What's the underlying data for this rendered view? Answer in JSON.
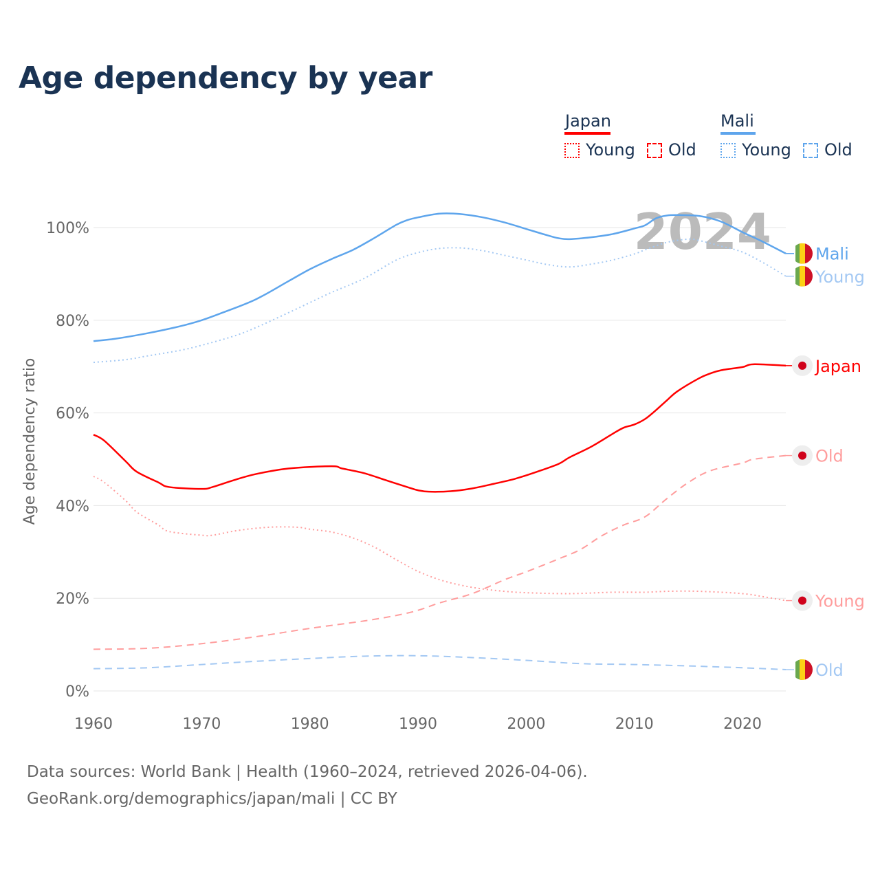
{
  "title": "Age dependency by year",
  "legend": {
    "groups": [
      {
        "name": "Japan",
        "color": "#ff0000",
        "young": "Young",
        "old": "Old"
      },
      {
        "name": "Mali",
        "color": "#5ea5ec",
        "young": "Young",
        "old": "Old"
      }
    ]
  },
  "year_watermark": "2024",
  "footer": {
    "line1": "Data sources: World Bank | Health (1960–2024, retrieved 2026-04-06).",
    "line2": "GeoRank.org/demographics/japan/mali | CC BY"
  },
  "chart_data": {
    "type": "line",
    "title": "Age dependency by year",
    "xlabel": "",
    "ylabel": "Age dependency ratio",
    "xlim": [
      1960,
      2024
    ],
    "ylim": [
      0,
      100
    ],
    "xticks": [
      "1960",
      "1970",
      "1980",
      "1990",
      "2000",
      "2010",
      "2020"
    ],
    "yticks": [
      "0%",
      "20%",
      "40%",
      "60%",
      "80%",
      "100%"
    ],
    "grid": true,
    "legend_position": "top-right",
    "series": [
      {
        "name": "Mali",
        "end_label": "Mali",
        "style": "solid",
        "color": "#5ea5ec",
        "flag": "mali",
        "points": [
          [
            1960,
            75.5
          ],
          [
            1962,
            76
          ],
          [
            1965,
            77.2
          ],
          [
            1968,
            78.7
          ],
          [
            1970,
            80
          ],
          [
            1972,
            81.7
          ],
          [
            1975,
            84.5
          ],
          [
            1978,
            88.4
          ],
          [
            1980,
            91
          ],
          [
            1982,
            93.2
          ],
          [
            1984,
            95.2
          ],
          [
            1986,
            97.8
          ],
          [
            1988,
            100.6
          ],
          [
            1989,
            101.6
          ],
          [
            1990,
            102.2
          ],
          [
            1992,
            103
          ],
          [
            1994,
            102.9
          ],
          [
            1996,
            102.2
          ],
          [
            1998,
            101.1
          ],
          [
            2000,
            99.7
          ],
          [
            2002,
            98.3
          ],
          [
            2003,
            97.7
          ],
          [
            2004,
            97.5
          ],
          [
            2006,
            97.9
          ],
          [
            2008,
            98.6
          ],
          [
            2010,
            99.8
          ],
          [
            2011,
            100.5
          ],
          [
            2012,
            102
          ],
          [
            2013,
            102.6
          ],
          [
            2014,
            102.7
          ],
          [
            2016,
            102.5
          ],
          [
            2018,
            101.3
          ],
          [
            2020,
            99
          ],
          [
            2022,
            96.8
          ],
          [
            2024,
            94.4
          ]
        ]
      },
      {
        "name": "Mali Young",
        "end_label": "Young",
        "style": "dotted",
        "color": "#a3c8f3",
        "flag": "mali",
        "points": [
          [
            1960,
            70.9
          ],
          [
            1963,
            71.5
          ],
          [
            1965,
            72.3
          ],
          [
            1968,
            73.5
          ],
          [
            1970,
            74.6
          ],
          [
            1973,
            76.6
          ],
          [
            1975,
            78.4
          ],
          [
            1978,
            81.6
          ],
          [
            1980,
            83.8
          ],
          [
            1982,
            86
          ],
          [
            1985,
            89
          ],
          [
            1988,
            93
          ],
          [
            1990,
            94.6
          ],
          [
            1992,
            95.5
          ],
          [
            1994,
            95.6
          ],
          [
            1996,
            95
          ],
          [
            1998,
            94
          ],
          [
            2000,
            93
          ],
          [
            2002,
            92
          ],
          [
            2004,
            91.5
          ],
          [
            2006,
            92.1
          ],
          [
            2008,
            93
          ],
          [
            2010,
            94.3
          ],
          [
            2011,
            95.2
          ],
          [
            2013,
            96.8
          ],
          [
            2015,
            97.5
          ],
          [
            2016,
            97.2
          ],
          [
            2018,
            96
          ],
          [
            2020,
            94.7
          ],
          [
            2022,
            92.3
          ],
          [
            2024,
            89.5
          ]
        ]
      },
      {
        "name": "Japan",
        "end_label": "Japan",
        "style": "solid",
        "color": "#ff0000",
        "flag": "japan",
        "points": [
          [
            1960,
            55.3
          ],
          [
            1961,
            54
          ],
          [
            1963,
            49.5
          ],
          [
            1964,
            47.3
          ],
          [
            1966,
            45
          ],
          [
            1967,
            44
          ],
          [
            1970,
            43.6
          ],
          [
            1971,
            44
          ],
          [
            1973,
            45.5
          ],
          [
            1975,
            46.8
          ],
          [
            1978,
            48
          ],
          [
            1982,
            48.5
          ],
          [
            1983,
            48
          ],
          [
            1985,
            47
          ],
          [
            1987,
            45.5
          ],
          [
            1989,
            44
          ],
          [
            1990,
            43.3
          ],
          [
            1991,
            43
          ],
          [
            1993,
            43.1
          ],
          [
            1995,
            43.7
          ],
          [
            1997,
            44.7
          ],
          [
            1999,
            45.8
          ],
          [
            2001,
            47.3
          ],
          [
            2003,
            49
          ],
          [
            2004,
            50.4
          ],
          [
            2006,
            52.7
          ],
          [
            2008,
            55.5
          ],
          [
            2009,
            56.8
          ],
          [
            2010,
            57.5
          ],
          [
            2011,
            58.7
          ],
          [
            2012,
            60.6
          ],
          [
            2013,
            62.7
          ],
          [
            2014,
            64.7
          ],
          [
            2016,
            67.5
          ],
          [
            2017,
            68.5
          ],
          [
            2018,
            69.2
          ],
          [
            2020,
            69.9
          ],
          [
            2021,
            70.5
          ],
          [
            2024,
            70.2
          ]
        ]
      },
      {
        "name": "Japan Old",
        "end_label": "Old",
        "style": "dashed",
        "color": "#ff9d9d",
        "flag": "japan",
        "points": [
          [
            1960,
            9
          ],
          [
            1965,
            9.2
          ],
          [
            1970,
            10.2
          ],
          [
            1975,
            11.7
          ],
          [
            1980,
            13.5
          ],
          [
            1985,
            15.1
          ],
          [
            1988,
            16.3
          ],
          [
            1990,
            17.4
          ],
          [
            1992,
            19
          ],
          [
            1995,
            21
          ],
          [
            1998,
            24
          ],
          [
            2000,
            25.7
          ],
          [
            2003,
            28.5
          ],
          [
            2005,
            30.5
          ],
          [
            2007,
            33.5
          ],
          [
            2009,
            35.8
          ],
          [
            2011,
            37.6
          ],
          [
            2013,
            41.5
          ],
          [
            2015,
            45
          ],
          [
            2017,
            47.5
          ],
          [
            2020,
            49.2
          ],
          [
            2021,
            50
          ],
          [
            2024,
            50.8
          ]
        ]
      },
      {
        "name": "Japan Young",
        "end_label": "Young",
        "style": "dotted",
        "color": "#ff9d9d",
        "flag": "japan",
        "points": [
          [
            1960,
            46.3
          ],
          [
            1961,
            45
          ],
          [
            1963,
            41
          ],
          [
            1964,
            38.6
          ],
          [
            1966,
            35.8
          ],
          [
            1967,
            34.4
          ],
          [
            1970,
            33.6
          ],
          [
            1971,
            33.6
          ],
          [
            1973,
            34.5
          ],
          [
            1975,
            35.1
          ],
          [
            1977,
            35.4
          ],
          [
            1979,
            35.3
          ],
          [
            1980,
            34.9
          ],
          [
            1982,
            34.3
          ],
          [
            1984,
            33
          ],
          [
            1986,
            31
          ],
          [
            1988,
            28.3
          ],
          [
            1990,
            25.8
          ],
          [
            1992,
            24
          ],
          [
            1994,
            22.8
          ],
          [
            1996,
            22
          ],
          [
            1998,
            21.5
          ],
          [
            2000,
            21.2
          ],
          [
            2004,
            21
          ],
          [
            2008,
            21.3
          ],
          [
            2011,
            21.3
          ],
          [
            2013,
            21.5
          ],
          [
            2016,
            21.5
          ],
          [
            2020,
            21
          ],
          [
            2022,
            20.3
          ],
          [
            2024,
            19.5
          ]
        ]
      },
      {
        "name": "Mali Old",
        "end_label": "Old",
        "style": "dashed",
        "color": "#a3c8f3",
        "flag": "mali",
        "points": [
          [
            1960,
            4.8
          ],
          [
            1965,
            5
          ],
          [
            1970,
            5.7
          ],
          [
            1975,
            6.4
          ],
          [
            1980,
            7
          ],
          [
            1985,
            7.5
          ],
          [
            1990,
            7.6
          ],
          [
            1995,
            7.2
          ],
          [
            2000,
            6.6
          ],
          [
            2005,
            5.9
          ],
          [
            2010,
            5.7
          ],
          [
            2015,
            5.4
          ],
          [
            2020,
            5
          ],
          [
            2024,
            4.6
          ]
        ]
      }
    ]
  }
}
